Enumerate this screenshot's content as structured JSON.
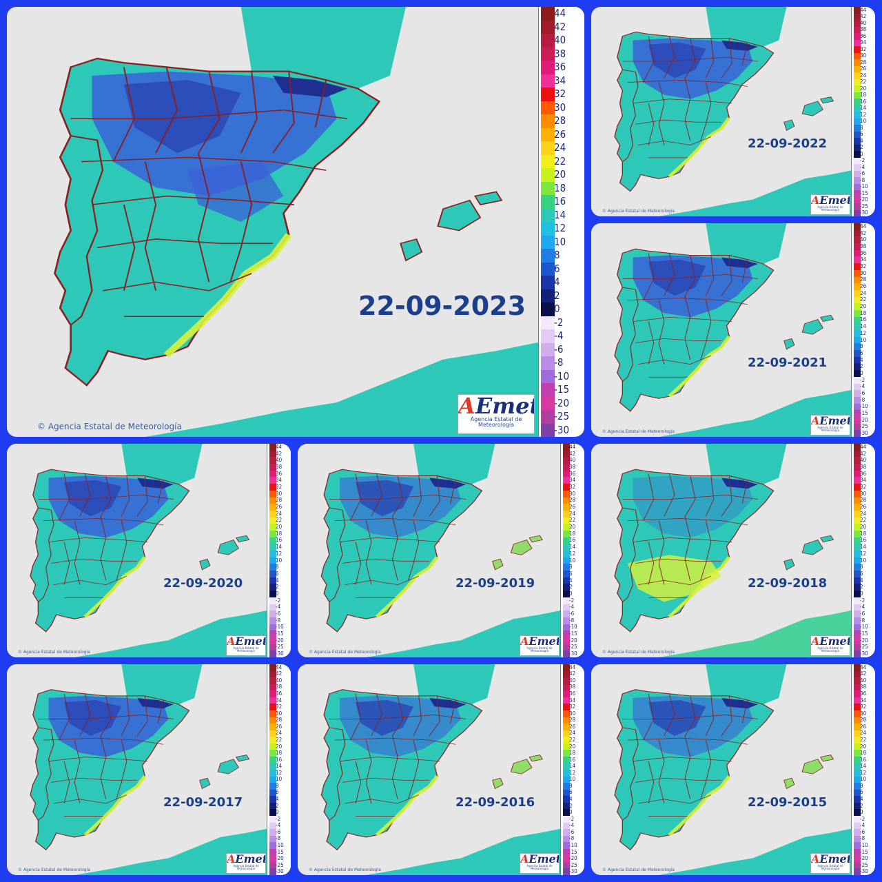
{
  "credit": "Agencia Estatal de Meteorología",
  "logo": {
    "a": "A",
    "rest": "Emet",
    "subtitle": "Agencia Estatal de Meteorología"
  },
  "colors": {
    "sea": "#e6e6e6",
    "land": "#2ec8b8",
    "cold": "#3a62d8",
    "colder": "#2a3fb0",
    "warm": "#9be86a",
    "hot": "#d8f23a",
    "border": "#8a1f1f",
    "date_text": "#1c3f8c",
    "frame": "#1e3cf0"
  },
  "main_ticks": [
    "44",
    "42",
    "40",
    "38",
    "36",
    "34",
    "32",
    "30",
    "28",
    "26",
    "24",
    "22",
    "20",
    "18",
    "16",
    "14",
    "12",
    "10",
    "8",
    "6",
    "4",
    "2",
    "0",
    "-2",
    "-4",
    "-6",
    "-8",
    "-10",
    "-15",
    "-20",
    "-25",
    "-30"
  ],
  "small_ticks": [
    "44",
    "42",
    "40",
    "38",
    "36",
    "34",
    "32",
    "30",
    "28",
    "26",
    "24",
    "22",
    "20",
    "18",
    "16",
    "14",
    "12",
    "10",
    "8",
    "6",
    "4",
    "2",
    "0",
    "-2",
    "-4",
    "-6",
    "-8",
    "-10",
    "-15",
    "-20",
    "-25",
    "-30"
  ],
  "scale_colors": [
    "#8b1c1c",
    "#a01c2c",
    "#b51c40",
    "#cc1c58",
    "#e01c78",
    "#f0309a",
    "#ee1010",
    "#ff5a00",
    "#ff8c00",
    "#ffb000",
    "#ffd21c",
    "#f2ee1a",
    "#c8f21e",
    "#7ce83c",
    "#38d282",
    "#2ec8b8",
    "#22c0e0",
    "#1ea8f0",
    "#1e7ee6",
    "#1e56d0",
    "#1b34a8",
    "#12227a",
    "#0a0f4c",
    "#f4e8fa",
    "#e2ccf4",
    "#cfaeee",
    "#b88ee6",
    "#a06cdc",
    "#c040b0",
    "#d838a0",
    "#b040a0",
    "#8040a8"
  ],
  "panels": [
    {
      "id": "p2023",
      "date": "22-09-2023",
      "variant": "cold2023"
    },
    {
      "id": "p2022",
      "date": "22-09-2022",
      "variant": "cold"
    },
    {
      "id": "p2021",
      "date": "22-09-2021",
      "variant": "cold"
    },
    {
      "id": "p2020",
      "date": "22-09-2020",
      "variant": "cold"
    },
    {
      "id": "p2019",
      "date": "22-09-2019",
      "variant": "mild"
    },
    {
      "id": "p2018",
      "date": "22-09-2018",
      "variant": "warm"
    },
    {
      "id": "p2017",
      "date": "22-09-2017",
      "variant": "cold"
    },
    {
      "id": "p2016",
      "date": "22-09-2016",
      "variant": "mild"
    },
    {
      "id": "p2015",
      "date": "22-09-2015",
      "variant": "mild"
    }
  ]
}
